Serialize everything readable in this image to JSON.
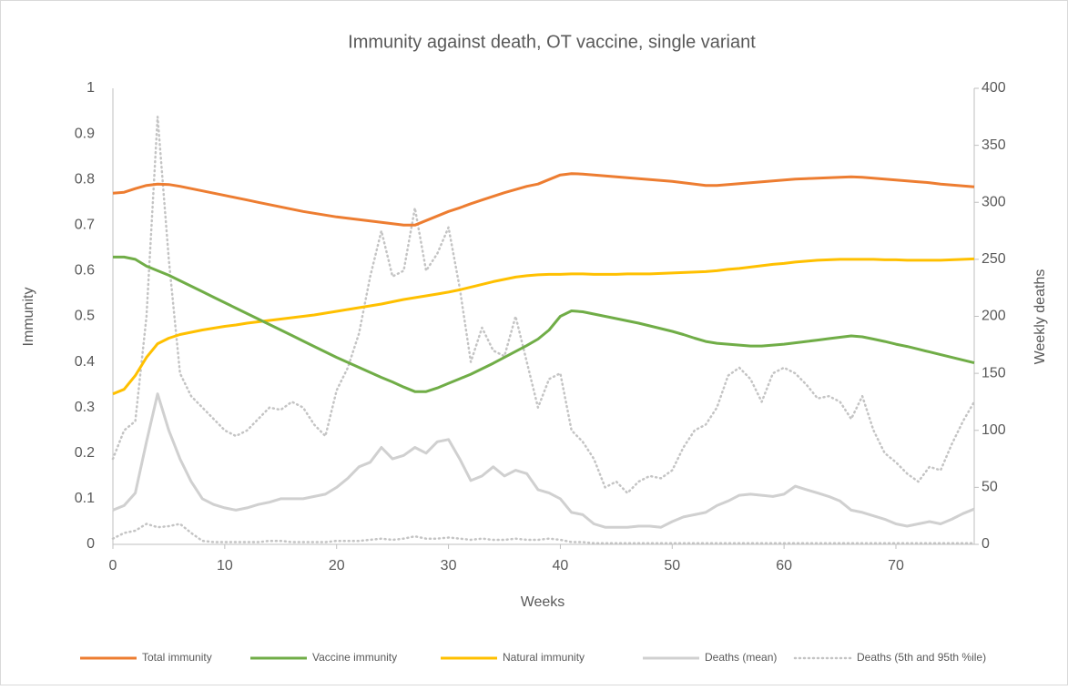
{
  "chart_data": {
    "type": "line",
    "title": "Immunity against death, OT vaccine, single variant",
    "x_label": "Weeks",
    "y_label": "Immunity",
    "y2_label": "Weekly deaths",
    "xlim": [
      0,
      77
    ],
    "xticks": [
      0,
      10,
      20,
      30,
      40,
      50,
      60,
      70
    ],
    "ylim": [
      0,
      1
    ],
    "yticks": [
      0,
      0.1,
      0.2,
      0.3,
      0.4,
      0.5,
      0.6,
      0.7,
      0.8,
      0.9,
      1
    ],
    "y2lim": [
      0,
      400
    ],
    "y2ticks": [
      0,
      50,
      100,
      150,
      200,
      250,
      300,
      350,
      400
    ],
    "legend": "bottom",
    "x": [
      0,
      1,
      2,
      3,
      4,
      5,
      6,
      7,
      8,
      9,
      10,
      11,
      12,
      13,
      14,
      15,
      16,
      17,
      18,
      19,
      20,
      21,
      22,
      23,
      24,
      25,
      26,
      27,
      28,
      29,
      30,
      31,
      32,
      33,
      34,
      35,
      36,
      37,
      38,
      39,
      40,
      41,
      42,
      43,
      44,
      45,
      46,
      47,
      48,
      49,
      50,
      51,
      52,
      53,
      54,
      55,
      56,
      57,
      58,
      59,
      60,
      61,
      62,
      63,
      64,
      65,
      66,
      67,
      68,
      69,
      70,
      71,
      72,
      73,
      74,
      75,
      76,
      77
    ],
    "series": [
      {
        "name": "Total immunity",
        "color": "#ed7d31",
        "values": [
          0.77,
          0.772,
          0.78,
          0.787,
          0.79,
          0.789,
          0.785,
          0.78,
          0.775,
          0.77,
          0.765,
          0.76,
          0.755,
          0.75,
          0.745,
          0.74,
          0.735,
          0.73,
          0.726,
          0.722,
          0.718,
          0.715,
          0.712,
          0.709,
          0.706,
          0.703,
          0.7,
          0.7,
          0.71,
          0.72,
          0.73,
          0.738,
          0.747,
          0.755,
          0.763,
          0.771,
          0.778,
          0.785,
          0.79,
          0.8,
          0.81,
          0.813,
          0.812,
          0.81,
          0.808,
          0.806,
          0.804,
          0.802,
          0.8,
          0.798,
          0.796,
          0.793,
          0.79,
          0.787,
          0.787,
          0.789,
          0.791,
          0.793,
          0.795,
          0.797,
          0.799,
          0.801,
          0.802,
          0.803,
          0.804,
          0.805,
          0.806,
          0.805,
          0.803,
          0.801,
          0.799,
          0.797,
          0.795,
          0.793,
          0.79,
          0.788,
          0.786,
          0.784
        ]
      },
      {
        "name": "Vaccine immunity",
        "color": "#70ad47",
        "values": [
          0.63,
          0.63,
          0.625,
          0.61,
          0.6,
          0.59,
          0.578,
          0.566,
          0.554,
          0.542,
          0.53,
          0.518,
          0.506,
          0.494,
          0.482,
          0.47,
          0.458,
          0.446,
          0.434,
          0.422,
          0.41,
          0.399,
          0.388,
          0.377,
          0.366,
          0.356,
          0.345,
          0.335,
          0.335,
          0.343,
          0.353,
          0.363,
          0.373,
          0.385,
          0.397,
          0.41,
          0.423,
          0.436,
          0.45,
          0.47,
          0.5,
          0.512,
          0.51,
          0.505,
          0.5,
          0.495,
          0.49,
          0.485,
          0.479,
          0.473,
          0.467,
          0.46,
          0.452,
          0.445,
          0.441,
          0.439,
          0.437,
          0.435,
          0.435,
          0.437,
          0.439,
          0.442,
          0.445,
          0.448,
          0.451,
          0.454,
          0.457,
          0.455,
          0.45,
          0.445,
          0.439,
          0.434,
          0.428,
          0.422,
          0.416,
          0.41,
          0.404,
          0.398
        ]
      },
      {
        "name": "Natural immunity",
        "color": "#ffc000",
        "values": [
          0.33,
          0.34,
          0.37,
          0.41,
          0.44,
          0.452,
          0.46,
          0.465,
          0.47,
          0.474,
          0.478,
          0.481,
          0.485,
          0.488,
          0.491,
          0.494,
          0.497,
          0.5,
          0.503,
          0.507,
          0.511,
          0.515,
          0.519,
          0.523,
          0.527,
          0.532,
          0.537,
          0.541,
          0.545,
          0.549,
          0.553,
          0.558,
          0.564,
          0.57,
          0.576,
          0.581,
          0.586,
          0.589,
          0.591,
          0.592,
          0.592,
          0.593,
          0.593,
          0.592,
          0.592,
          0.592,
          0.593,
          0.593,
          0.593,
          0.594,
          0.595,
          0.596,
          0.597,
          0.598,
          0.6,
          0.603,
          0.605,
          0.608,
          0.611,
          0.614,
          0.616,
          0.619,
          0.621,
          0.623,
          0.624,
          0.625,
          0.625,
          0.625,
          0.625,
          0.624,
          0.624,
          0.623,
          0.623,
          0.623,
          0.623,
          0.624,
          0.625,
          0.626
        ]
      },
      {
        "name": "Deaths (mean)",
        "color": "#d0d0d0",
        "axis": "y2",
        "values": [
          30,
          34,
          45,
          90,
          132,
          100,
          75,
          55,
          40,
          35,
          32,
          30,
          32,
          35,
          37,
          40,
          40,
          40,
          42,
          44,
          50,
          58,
          68,
          72,
          85,
          75,
          78,
          85,
          80,
          90,
          92,
          75,
          56,
          60,
          68,
          60,
          65,
          62,
          48,
          45,
          40,
          28,
          26,
          18,
          15,
          15,
          15,
          16,
          16,
          15,
          20,
          24,
          26,
          28,
          34,
          38,
          43,
          44,
          43,
          42,
          44,
          51,
          48,
          45,
          42,
          38,
          30,
          28,
          25,
          22,
          18,
          16,
          18,
          20,
          18,
          22,
          27,
          31
        ]
      },
      {
        "name": "Deaths (5th and 95th %ile)",
        "color": "#c4c4c4",
        "axis": "y2",
        "dash": true,
        "upper": [
          75,
          100,
          108,
          200,
          375,
          250,
          150,
          130,
          120,
          110,
          100,
          95,
          100,
          110,
          120,
          118,
          125,
          120,
          105,
          95,
          135,
          155,
          185,
          235,
          275,
          235,
          240,
          295,
          240,
          255,
          278,
          225,
          160,
          190,
          170,
          165,
          200,
          160,
          120,
          145,
          150,
          100,
          90,
          75,
          50,
          55,
          45,
          55,
          60,
          58,
          65,
          85,
          100,
          105,
          120,
          148,
          155,
          145,
          125,
          150,
          155,
          150,
          140,
          128,
          130,
          125,
          110,
          130,
          100,
          80,
          72,
          62,
          55,
          68,
          65,
          88,
          108,
          125
        ],
        "lower": [
          5,
          10,
          12,
          18,
          15,
          16,
          18,
          10,
          3,
          2,
          2,
          2,
          2,
          2,
          3,
          3,
          2,
          2,
          2,
          2,
          3,
          3,
          3,
          4,
          5,
          4,
          5,
          7,
          5,
          5,
          6,
          5,
          4,
          5,
          4,
          4,
          5,
          4,
          4,
          5,
          4,
          2,
          2,
          1,
          1,
          1,
          1,
          1,
          1,
          1,
          1,
          1,
          1,
          1,
          1,
          1,
          1,
          1,
          1,
          1,
          1,
          1,
          1,
          1,
          1,
          1,
          1,
          1,
          1,
          1,
          1,
          1,
          1,
          1,
          1,
          1,
          1,
          1
        ]
      }
    ]
  }
}
